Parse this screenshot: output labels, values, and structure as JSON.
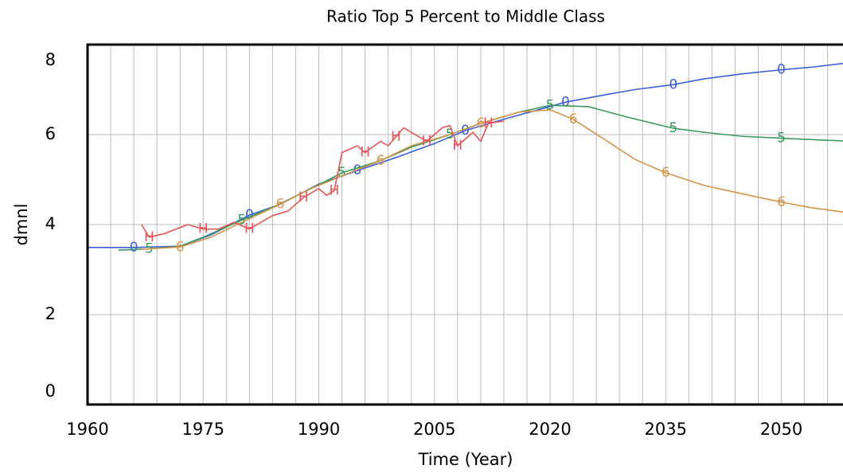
{
  "chart_data": {
    "type": "line",
    "title": "Ratio Top 5 Percent to Middle Class",
    "xlabel": "Time (Year)",
    "ylabel": "dmnl",
    "xlim": [
      1960,
      2058
    ],
    "ylim": [
      0,
      8
    ],
    "xticks": [
      1960,
      1975,
      1990,
      2005,
      2020,
      2035,
      2050
    ],
    "xminor": [
      1963,
      1966,
      1969,
      1972,
      1978,
      1981,
      1984,
      1987,
      1993,
      1996,
      1999,
      2002,
      2008,
      2011,
      2014,
      2017,
      2023,
      2026,
      2029,
      2032,
      2038,
      2041,
      2044,
      2047,
      2053,
      2056
    ],
    "yticks": [
      0,
      2,
      4,
      6,
      8
    ],
    "grid": true,
    "series": [
      {
        "name": "0",
        "color": "#3b5fdc",
        "x": [
          1960,
          1966,
          1972,
          1976,
          1981,
          1985,
          1990,
          1995,
          2000,
          2005,
          2009,
          2014,
          2018,
          2022,
          2027,
          2031,
          2036,
          2040,
          2045,
          2050,
          2054,
          2058
        ],
        "values": [
          3.49,
          3.49,
          3.52,
          3.77,
          4.21,
          4.45,
          4.9,
          5.2,
          5.49,
          5.8,
          6.09,
          6.34,
          6.53,
          6.72,
          6.88,
          7.0,
          7.11,
          7.24,
          7.35,
          7.44,
          7.5,
          7.58
        ]
      },
      {
        "name": "5",
        "color": "#3a9a5b",
        "x": [
          1964,
          1968,
          1972,
          1975,
          1980,
          1984,
          1989,
          1993,
          1998,
          2002,
          2007,
          2011,
          2016,
          2020,
          2025,
          2030,
          2036,
          2040,
          2045,
          2050,
          2055,
          2058
        ],
        "values": [
          3.43,
          3.46,
          3.52,
          3.72,
          4.1,
          4.38,
          4.8,
          5.15,
          5.42,
          5.72,
          6.0,
          6.25,
          6.5,
          6.65,
          6.62,
          6.39,
          6.14,
          6.05,
          5.96,
          5.92,
          5.88,
          5.86
        ]
      },
      {
        "name": "6",
        "color": "#d4944a",
        "x": [
          1967,
          1972,
          1976,
          1980,
          1985,
          1989,
          1994,
          1998,
          2002,
          2007,
          2011,
          2016,
          2020,
          2023,
          2027,
          2031,
          2035,
          2040,
          2045,
          2050,
          2054,
          2058
        ],
        "values": [
          3.45,
          3.5,
          3.72,
          4.05,
          4.45,
          4.8,
          5.15,
          5.42,
          5.75,
          6.0,
          6.25,
          6.5,
          6.55,
          6.34,
          5.9,
          5.45,
          5.15,
          4.87,
          4.68,
          4.5,
          4.37,
          4.28
        ]
      },
      {
        "name": "H",
        "color": "#e8545a",
        "x": [
          1967,
          1968,
          1970,
          1973,
          1975,
          1977,
          1979,
          1981,
          1984,
          1986,
          1988,
          1990,
          1991,
          1992,
          1993,
          1995,
          1996,
          1998,
          1999,
          2000,
          2001,
          2003,
          2004,
          2006,
          2007,
          2008,
          2010,
          2011,
          2012,
          2014
        ],
        "values": [
          4.0,
          3.72,
          3.8,
          4.0,
          3.9,
          3.9,
          4.05,
          3.9,
          4.2,
          4.3,
          4.6,
          4.8,
          4.65,
          4.75,
          5.6,
          5.75,
          5.6,
          5.85,
          5.75,
          5.95,
          6.15,
          5.95,
          5.85,
          6.15,
          6.2,
          5.75,
          6.05,
          5.85,
          6.25,
          6.3
        ]
      }
    ]
  }
}
